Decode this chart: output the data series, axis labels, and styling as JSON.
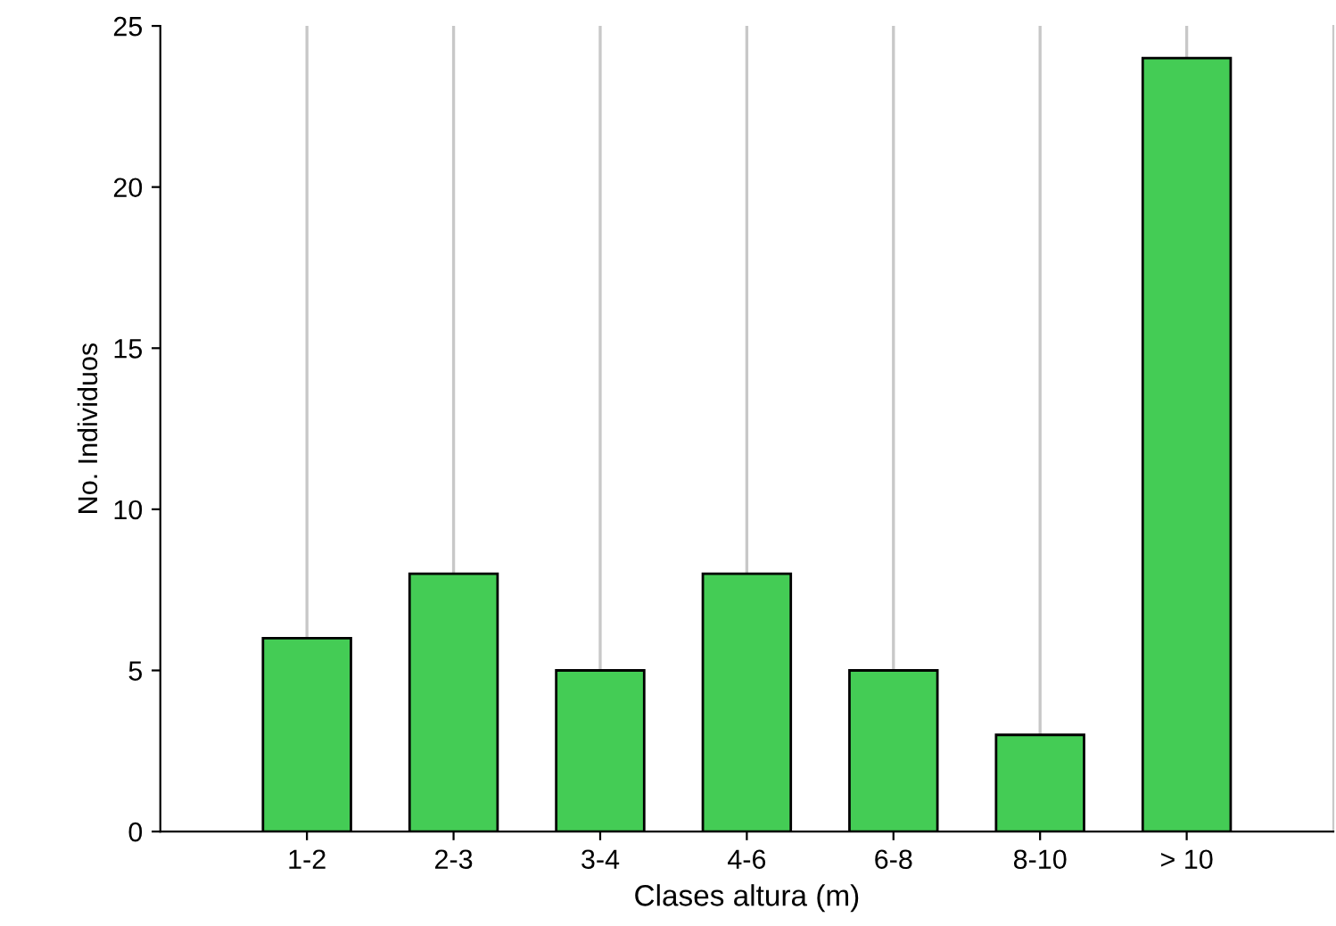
{
  "chart_data": {
    "type": "bar",
    "xlabel": "Clases altura (m)",
    "ylabel": "No. Individuos",
    "categories": [
      "1-2",
      "2-3",
      "3-4",
      "4-6",
      "6-8",
      "8-10",
      "> 10"
    ],
    "values": [
      6,
      8,
      5,
      8,
      5,
      3,
      24
    ],
    "color": "#44cc55",
    "ylim": [
      0,
      25
    ],
    "yticks": [
      0,
      5,
      10,
      15,
      20,
      25
    ],
    "grid": "x",
    "legend": false
  }
}
